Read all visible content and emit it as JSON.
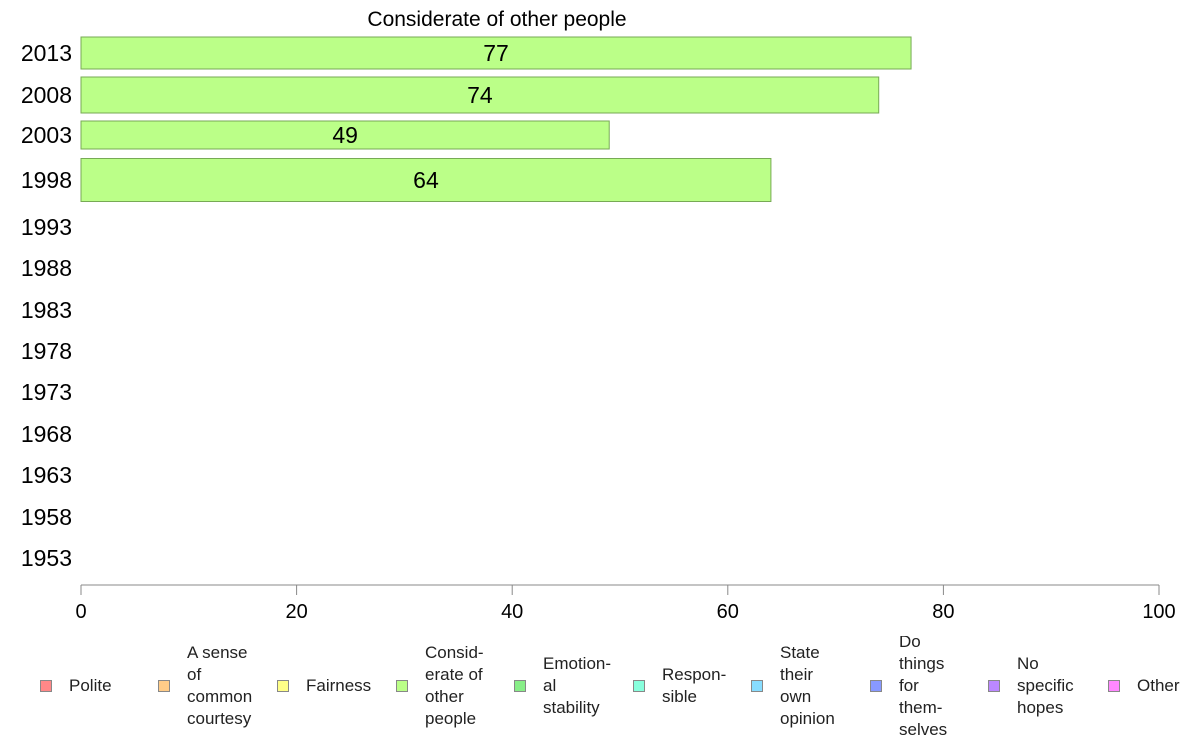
{
  "chart_data": {
    "type": "bar",
    "orientation": "horizontal",
    "title": "Considerate of other people",
    "categories": [
      "2013",
      "2008",
      "2003",
      "1998",
      "1993",
      "1988",
      "1983",
      "1978",
      "1973",
      "1968",
      "1963",
      "1958",
      "1953"
    ],
    "values": [
      77,
      74,
      49,
      64,
      null,
      null,
      null,
      null,
      null,
      null,
      null,
      null,
      null
    ],
    "xlim": [
      0,
      100
    ],
    "xticks": [
      "0",
      "20",
      "40",
      "60",
      "80",
      "100"
    ],
    "xlabel": "",
    "ylabel": "",
    "grid": false,
    "bar_color": "#bbff88",
    "bar_border": "#77aa55",
    "legend_placement": "bottom",
    "legend": [
      {
        "label": "Polite",
        "color": "#ff8888"
      },
      {
        "label": "A sense\nof\ncommon\ncourtesy",
        "color": "#ffcc88"
      },
      {
        "label": "Fairness",
        "color": "#ffff88"
      },
      {
        "label": "Consid-\nerate of\nother\npeople",
        "color": "#bbff88"
      },
      {
        "label": "Emotion-\nal\nstability",
        "color": "#88ee88"
      },
      {
        "label": "Respon-\nsible",
        "color": "#88ffdd"
      },
      {
        "label": "State\ntheir\nown\nopinion",
        "color": "#88ddff"
      },
      {
        "label": "Do\nthings\nfor\nthem-\nselves",
        "color": "#8899ff"
      },
      {
        "label": "No\nspecific\nhopes",
        "color": "#bb88ff"
      },
      {
        "label": "Other",
        "color": "#ff88ff"
      }
    ]
  }
}
